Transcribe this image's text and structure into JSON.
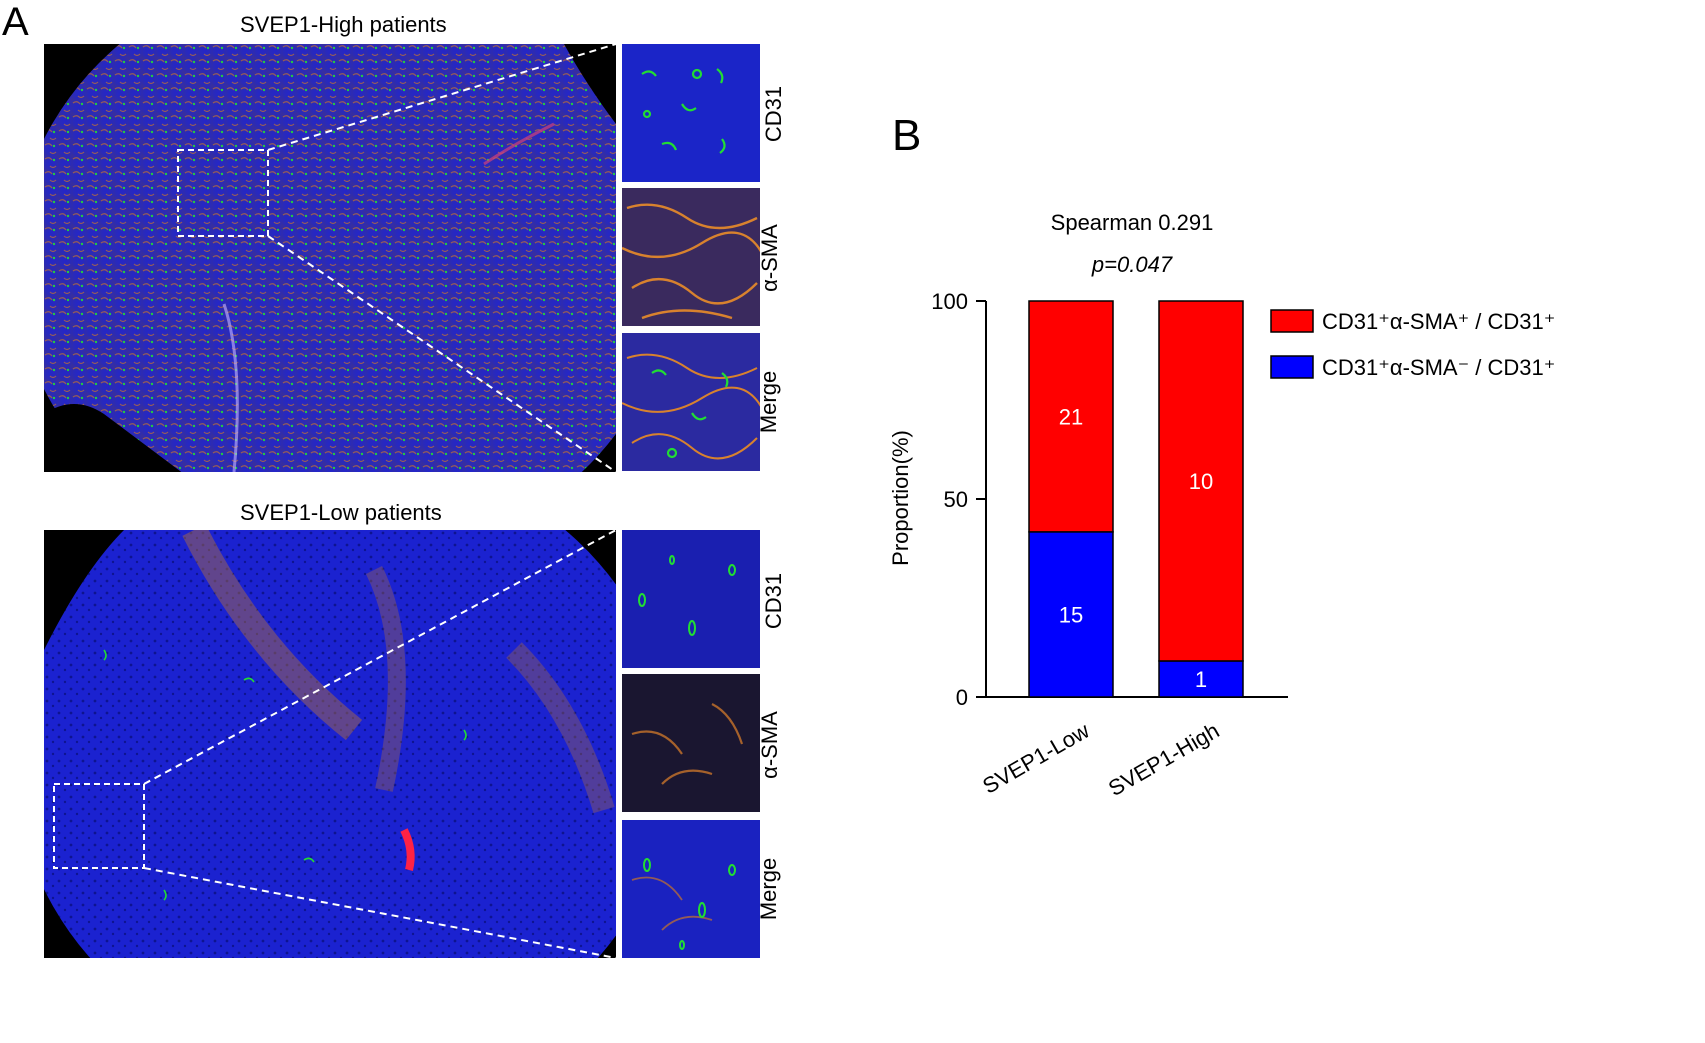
{
  "panel_a": {
    "letter": "A",
    "top": {
      "title": "SVEP1-High patients",
      "insets": [
        "CD31",
        "α-SMA",
        "Merge"
      ]
    },
    "bottom": {
      "title": "SVEP1-Low patients",
      "insets": [
        "CD31",
        "α-SMA",
        "Merge"
      ]
    }
  },
  "panel_b": {
    "letter": "B"
  },
  "colors": {
    "red": "#ff0000",
    "blue": "#0000ff",
    "tissue_blue": "#1a22c8",
    "tissue_orange": "#c8742a",
    "vessel_green": "#22dd33"
  },
  "chart_data": {
    "type": "bar",
    "stacked": true,
    "title": "Spearman 0.291",
    "subtitle": "p=0.047",
    "ylabel": "Proportion(%)",
    "xlabel": "",
    "ylim": [
      0,
      100
    ],
    "yticks": [
      0,
      50,
      100
    ],
    "categories": [
      "SVEP1-Low",
      "SVEP1-High"
    ],
    "series": [
      {
        "name": "CD31⁺α-SMA⁻ / CD31⁺",
        "color": "#0000ff",
        "values": [
          41.7,
          9.1
        ],
        "labels": [
          "15",
          "1"
        ]
      },
      {
        "name": "CD31⁺α-SMA⁺ / CD31⁺",
        "color": "#ff0000",
        "values": [
          58.3,
          90.9
        ],
        "labels": [
          "21",
          "10"
        ]
      }
    ],
    "legend": {
      "placement": "right",
      "entries": [
        "CD31⁺α-SMA⁺ / CD31⁺",
        "CD31⁺α-SMA⁻ / CD31⁺"
      ]
    }
  }
}
